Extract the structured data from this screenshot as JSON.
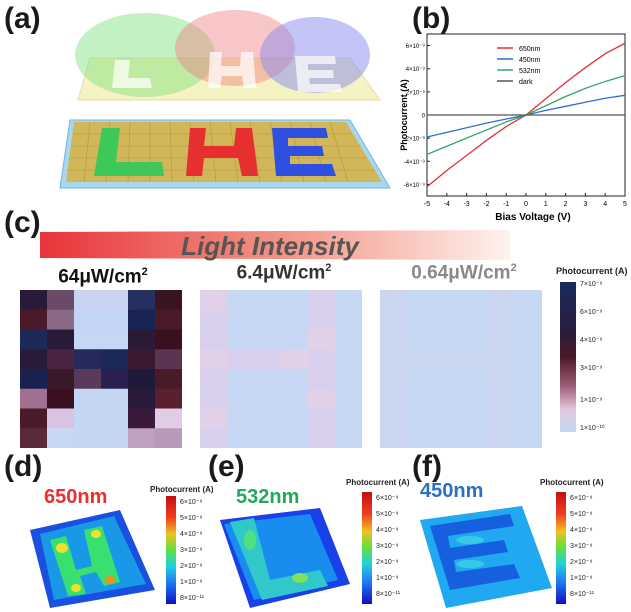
{
  "panels": {
    "a": "(a)",
    "b": "(b)",
    "c": "(c)",
    "d": "(d)",
    "e": "(e)",
    "f": "(f)"
  },
  "chart_b": {
    "chart_data": {
      "type": "line",
      "xlabel": "Bias Voltage (V)",
      "ylabel": "Photocurrent (A)",
      "xlim": [
        -5,
        5
      ],
      "ylim": [
        -7e-09,
        7e-09
      ],
      "xticks": [
        "-5",
        "-4",
        "-3",
        "-2",
        "-1",
        "0",
        "1",
        "2",
        "3",
        "4",
        "5"
      ],
      "yticks": [
        "-6×10⁻⁹",
        "-4×10⁻⁹",
        "-2×10⁻⁹",
        "0",
        "2×10⁻⁹",
        "4×10⁻⁹",
        "6×10⁻⁹"
      ],
      "legend_position": "top-right",
      "series": [
        {
          "name": "650nm",
          "color": "#e0303a",
          "x": [
            -5,
            -4,
            -3,
            -2,
            -1,
            0,
            1,
            2,
            3,
            4,
            5
          ],
          "y": [
            -6.2e-09,
            -4.8e-09,
            -3.5e-09,
            -2.2e-09,
            -1e-09,
            0,
            1.4e-09,
            2.8e-09,
            4.1e-09,
            5.3e-09,
            6.2e-09
          ]
        },
        {
          "name": "450nm",
          "color": "#2f6fd0",
          "x": [
            -5,
            -4,
            -3,
            -2,
            -1,
            0,
            1,
            2,
            3,
            4,
            5
          ],
          "y": [
            -1.9e-09,
            -1.5e-09,
            -1.1e-09,
            -7e-10,
            -3.5e-10,
            0,
            4e-10,
            7.5e-10,
            1.1e-09,
            1.45e-09,
            1.7e-09
          ]
        },
        {
          "name": "532nm",
          "color": "#2fa86a",
          "x": [
            -5,
            -4,
            -3,
            -2,
            -1,
            0,
            1,
            2,
            3,
            4,
            5
          ],
          "y": [
            -3.4e-09,
            -2.7e-09,
            -2e-09,
            -1.3e-09,
            -6e-10,
            0,
            8e-10,
            1.6e-09,
            2.3e-09,
            2.9e-09,
            3.4e-09
          ]
        },
        {
          "name": "dark",
          "color": "#555555",
          "x": [
            -5,
            -4,
            -3,
            -2,
            -1,
            0,
            1,
            2,
            3,
            4,
            5
          ],
          "y": [
            0,
            0,
            0,
            0,
            0,
            0,
            0,
            0,
            0,
            0,
            0
          ]
        }
      ]
    }
  },
  "panel_c": {
    "banner": "Light Intensity",
    "maps": [
      {
        "title_main": "64μW/cm",
        "title_sup": "2",
        "color": "#111111"
      },
      {
        "title_main": "6.4μW/cm",
        "title_sup": "2",
        "color": "#333333"
      },
      {
        "title_main": "0.64μW/cm",
        "title_sup": "2",
        "color": "#888888"
      }
    ],
    "colorbar": {
      "title": "Photocurrent (A)",
      "ticks": [
        "7×10⁻⁹",
        "6×10⁻⁹",
        "4×10⁻⁹",
        "3×10⁻⁹",
        "1×10⁻⁹",
        "1×10⁻¹⁰"
      ]
    }
  },
  "surfaces": [
    {
      "label": "650nm",
      "color": "#e8302e",
      "cbar_title": "Photocurrent (A)",
      "ticks": [
        "6×10⁻⁹",
        "5×10⁻⁹",
        "4×10⁻⁹",
        "3×10⁻⁹",
        "2×10⁻⁹",
        "1×10⁻⁹",
        "8×10⁻¹¹"
      ]
    },
    {
      "label": "532nm",
      "color": "#22a85a",
      "cbar_title": "Photocurrent (A)",
      "ticks": [
        "6×10⁻⁹",
        "5×10⁻⁹",
        "4×10⁻⁹",
        "3×10⁻⁹",
        "2×10⁻⁹",
        "1×10⁻⁹",
        "8×10⁻¹¹"
      ]
    },
    {
      "label": "450nm",
      "color": "#2a6fc8",
      "cbar_title": "Photocurrent (A)",
      "ticks": [
        "6×10⁻⁹",
        "5×10⁻⁹",
        "4×10⁻⁹",
        "3×10⁻⁹",
        "2×10⁻⁹",
        "1×10⁻⁹",
        "8×10⁻¹¹"
      ]
    }
  ]
}
